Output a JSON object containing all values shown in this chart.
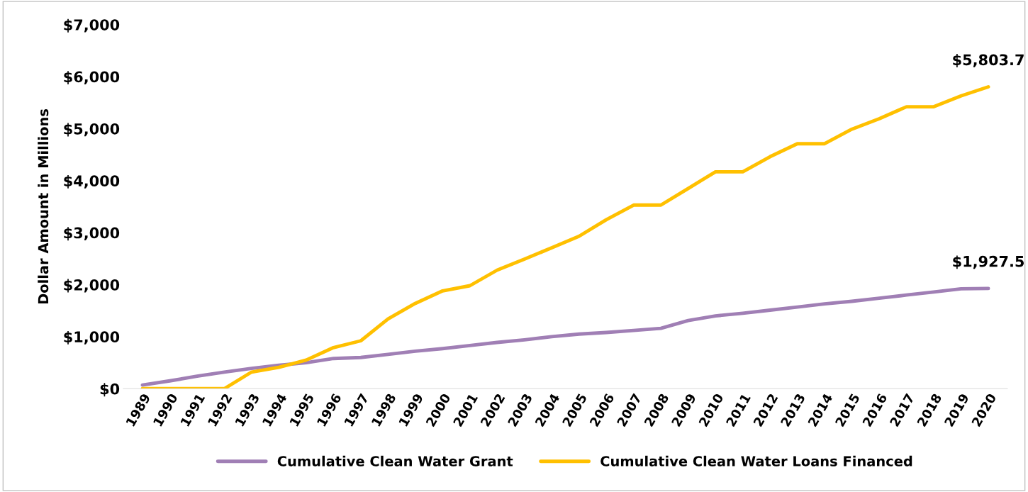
{
  "chart_data": {
    "type": "line",
    "ylabel": "Dollar Amount in Millions",
    "categories": [
      "1989",
      "1990",
      "1991",
      "1992",
      "1993",
      "1994",
      "1995",
      "1996",
      "1997",
      "1998",
      "1999",
      "2000",
      "2001",
      "2002",
      "2003",
      "2004",
      "2005",
      "2006",
      "2007",
      "2008",
      "2009",
      "2010",
      "2011",
      "2012",
      "2013",
      "2014",
      "2015",
      "2016",
      "2017",
      "2018",
      "2019",
      "2020"
    ],
    "series": [
      {
        "name": "Cumulative Clean Water Grant",
        "color": "#a07fb5",
        "values": [
          70,
          150,
          240,
          320,
          390,
          450,
          500,
          580,
          600,
          660,
          720,
          770,
          830,
          890,
          940,
          1000,
          1050,
          1080,
          1120,
          1160,
          1310,
          1400,
          1450,
          1510,
          1570,
          1630,
          1680,
          1740,
          1800,
          1860,
          1920,
          1927.5
        ]
      },
      {
        "name": "Cumulative Clean Water Loans Financed",
        "color": "#ffc000",
        "values": [
          0,
          0,
          0,
          0,
          320,
          410,
          550,
          790,
          920,
          1340,
          1640,
          1880,
          1980,
          2280,
          2490,
          2710,
          2930,
          3250,
          3530,
          3530,
          3850,
          4170,
          4170,
          4460,
          4710,
          4710,
          4990,
          5190,
          5420,
          5420,
          5630,
          5803.7
        ]
      }
    ],
    "ylim": [
      0,
      7000
    ],
    "yticks": [
      {
        "value": 0,
        "label": "$0"
      },
      {
        "value": 1000,
        "label": "$1,000"
      },
      {
        "value": 2000,
        "label": "$2,000"
      },
      {
        "value": 3000,
        "label": "$3,000"
      },
      {
        "value": 4000,
        "label": "$4,000"
      },
      {
        "value": 5000,
        "label": "$5,000"
      },
      {
        "value": 6000,
        "label": "$6,000"
      },
      {
        "value": 7000,
        "label": "$7,000"
      }
    ],
    "annotations": [
      {
        "text": "$5,803.7",
        "x": "2020",
        "y": 5803.7
      },
      {
        "text": "$1,927.5",
        "x": "2020",
        "y": 1927.5
      }
    ],
    "legend": "bottom",
    "grid": false,
    "marker": "none",
    "line_style": "solid"
  }
}
